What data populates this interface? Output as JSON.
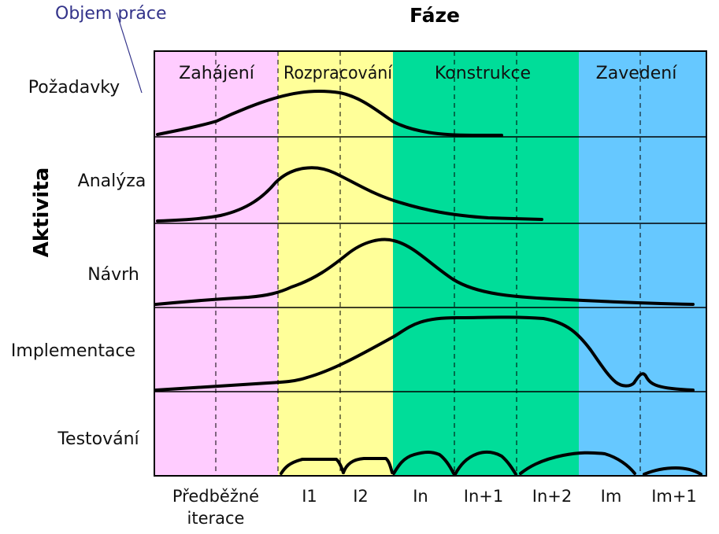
{
  "title": "Fáze",
  "caption": "Objem práce",
  "y_axis_title": "Aktivita",
  "colors": {
    "phase1": "#ffccff",
    "phase2": "#ffff99",
    "phase3": "#00dd99",
    "phase4": "#66c8ff",
    "caption": "#33338a"
  },
  "phases": [
    {
      "name": "Zahájení",
      "color": "#ffccff"
    },
    {
      "name": "Rozpracování",
      "color": "#ffff99"
    },
    {
      "name": "Konstrukce",
      "color": "#00dd99"
    },
    {
      "name": "Zavedení",
      "color": "#66c8ff"
    }
  ],
  "activities": [
    "Požadavky",
    "Analýza",
    "Návrh",
    "Implementace",
    "Testování"
  ],
  "iterations": [
    {
      "line1": "Předběžné",
      "line2": "iterace"
    },
    {
      "line1": "I1",
      "line2": ""
    },
    {
      "line1": "I2",
      "line2": ""
    },
    {
      "line1": "In",
      "line2": ""
    },
    {
      "line1": "In+1",
      "line2": ""
    },
    {
      "line1": "In+2",
      "line2": ""
    },
    {
      "line1": "Im",
      "line2": ""
    },
    {
      "line1": "Im+1",
      "line2": ""
    }
  ]
}
